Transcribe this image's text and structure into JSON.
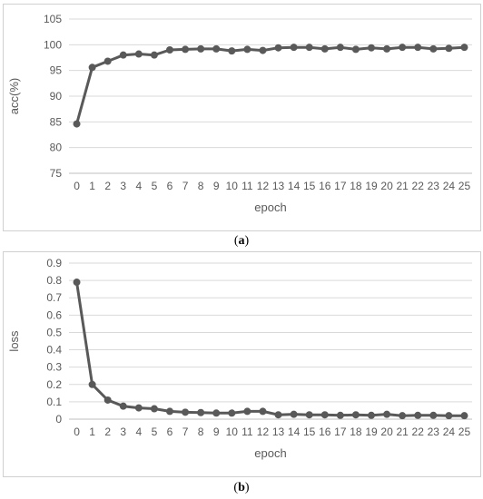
{
  "chart_data": [
    {
      "type": "line",
      "caption_open": "(",
      "caption_letter": "a",
      "caption_close": ")",
      "title": "",
      "xlabel": "epoch",
      "ylabel": "acc(%)",
      "ylim": [
        75,
        105
      ],
      "yticks": [
        75,
        80,
        85,
        90,
        95,
        100,
        105
      ],
      "grid": true,
      "legend": "none",
      "color": "#595959",
      "x": [
        0,
        1,
        2,
        3,
        4,
        5,
        6,
        7,
        8,
        9,
        10,
        11,
        12,
        13,
        14,
        15,
        16,
        17,
        18,
        19,
        20,
        21,
        22,
        23,
        24,
        25
      ],
      "values": [
        84.6,
        95.6,
        96.8,
        98.0,
        98.2,
        98.0,
        99.0,
        99.1,
        99.2,
        99.2,
        98.8,
        99.1,
        98.9,
        99.4,
        99.5,
        99.5,
        99.2,
        99.5,
        99.1,
        99.4,
        99.2,
        99.5,
        99.5,
        99.2,
        99.3,
        99.5
      ]
    },
    {
      "type": "line",
      "caption_open": "(",
      "caption_letter": "b",
      "caption_close": ")",
      "title": "",
      "xlabel": "epoch",
      "ylabel": "loss",
      "ylim": [
        0,
        0.9
      ],
      "yticks": [
        0,
        0.1,
        0.2,
        0.3,
        0.4,
        0.5,
        0.6,
        0.7,
        0.8,
        0.9
      ],
      "grid": true,
      "legend": "none",
      "color": "#595959",
      "x": [
        0,
        1,
        2,
        3,
        4,
        5,
        6,
        7,
        8,
        9,
        10,
        11,
        12,
        13,
        14,
        15,
        16,
        17,
        18,
        19,
        20,
        21,
        22,
        23,
        24,
        25
      ],
      "values": [
        0.79,
        0.2,
        0.11,
        0.075,
        0.065,
        0.06,
        0.045,
        0.04,
        0.038,
        0.035,
        0.035,
        0.045,
        0.045,
        0.025,
        0.028,
        0.025,
        0.025,
        0.022,
        0.025,
        0.022,
        0.028,
        0.02,
        0.022,
        0.022,
        0.02,
        0.02
      ]
    }
  ]
}
